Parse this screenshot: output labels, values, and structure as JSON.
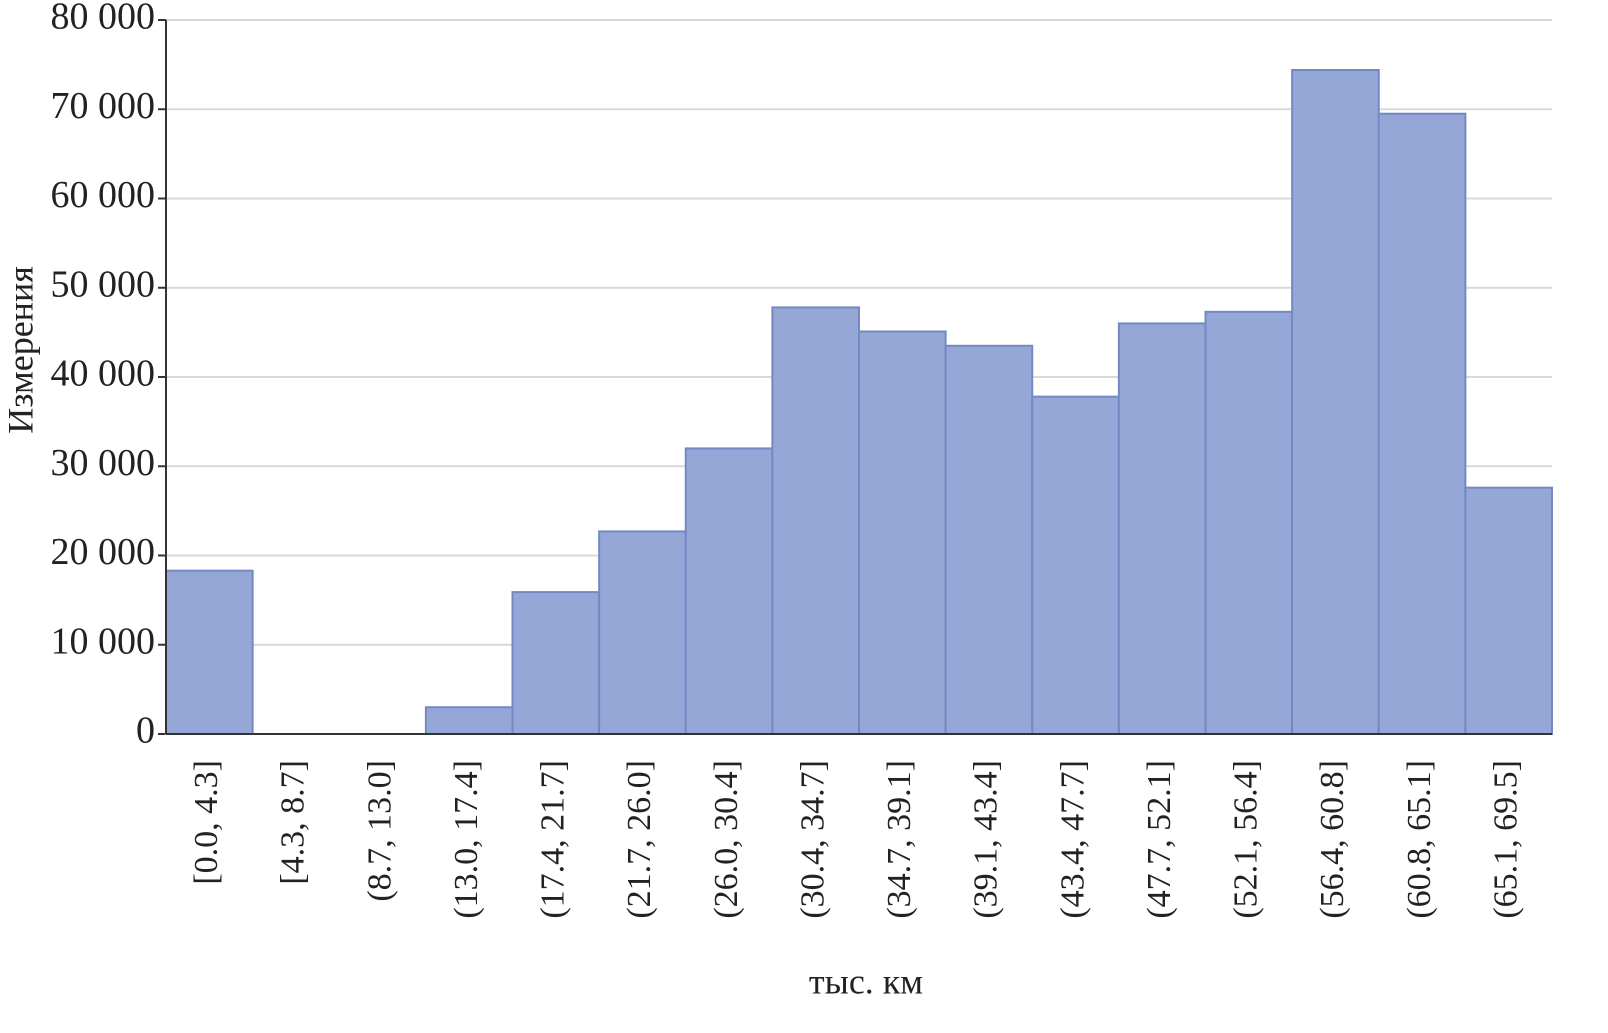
{
  "chart_data": {
    "type": "bar",
    "ylabel": "Измерения",
    "xlabel": "тыс. км",
    "categories": [
      "[0.0, 4.3]",
      "[4.3, 8.7]",
      "(8.7, 13.0]",
      "(13.0, 17.4]",
      "(17.4, 21.7]",
      "(21.7, 26.0]",
      "(26.0, 30.4]",
      "(30.4, 34.7]",
      "(34.7, 39.1]",
      "(39.1, 43.4]",
      "(43.4, 47.7]",
      "(47.7, 52.1]",
      "(52.1, 56.4]",
      "(56.4, 60.8]",
      "(60.8, 65.1]",
      "(65.1, 69.5]"
    ],
    "values": [
      18300,
      0,
      0,
      3000,
      15900,
      22700,
      32000,
      47800,
      45100,
      43500,
      37800,
      46000,
      47300,
      74400,
      69500,
      27600
    ],
    "color": "#94a7d6",
    "ylim": [
      0,
      80000
    ],
    "yticks": [
      0,
      {
        "value": 10000,
        "label": "10 000"
      },
      {
        "value": 20000,
        "label": "20 000"
      },
      {
        "value": 30000,
        "label": "30 000"
      },
      {
        "value": 40000,
        "label": "40 000"
      },
      {
        "value": 50000,
        "label": "50 000"
      },
      {
        "value": 60000,
        "label": "60 000"
      },
      {
        "value": 70000,
        "label": "70 000"
      },
      {
        "value": 80000,
        "label": "80 000"
      }
    ],
    "grid": true
  }
}
